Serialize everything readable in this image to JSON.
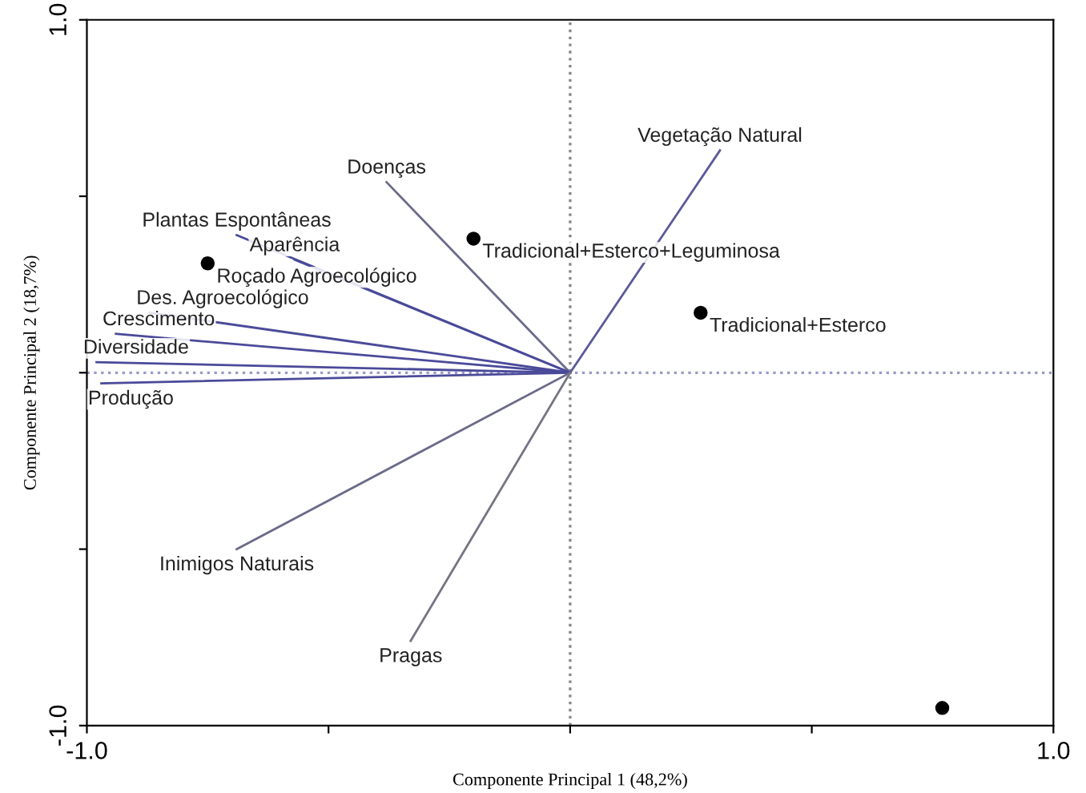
{
  "chart_data": {
    "type": "scatter",
    "xlabel": "Componente Principal 1 (48,2%)",
    "ylabel": "Componente Principal 2 (18,7%)",
    "xlim": [
      -1,
      1
    ],
    "ylim": [
      -1,
      1
    ],
    "xticks": [
      {
        "value": -1,
        "label": "-1.0"
      },
      {
        "value": -0.5,
        "label": null
      },
      {
        "value": 0,
        "label": null
      },
      {
        "value": 0.5,
        "label": null
      },
      {
        "value": 1,
        "label": "1.0"
      }
    ],
    "yticks": [
      {
        "value": -1,
        "label": "-1.0"
      },
      {
        "value": -0.5,
        "label": null
      },
      {
        "value": 0,
        "label": null
      },
      {
        "value": 0.5,
        "label": null
      },
      {
        "value": 1,
        "label": "1.0"
      }
    ],
    "grid": false,
    "legend": false,
    "series": [
      {
        "type": "line",
        "color": "#5a5a9a",
        "x": [
          0,
          0.31
        ],
        "values": [
          0,
          0.63
        ]
      },
      {
        "type": "line",
        "color": "#6a6a8a",
        "x": [
          0,
          -0.38
        ],
        "values": [
          0,
          0.54
        ]
      },
      {
        "type": "line",
        "color": "#4a4a9a",
        "x": [
          0,
          -0.69
        ],
        "values": [
          0,
          0.39
        ]
      },
      {
        "type": "line",
        "color": "#4a4a9a",
        "x": [
          0,
          -0.57
        ],
        "values": [
          0,
          0.32
        ]
      },
      {
        "type": "line",
        "color": "#4a4a9a",
        "x": [
          0,
          -0.87
        ],
        "values": [
          0,
          0.17
        ]
      },
      {
        "type": "line",
        "color": "#4a4a9a",
        "x": [
          0,
          -0.94
        ],
        "values": [
          0,
          0.11
        ]
      },
      {
        "type": "line",
        "color": "#4a4a9a",
        "x": [
          0,
          -0.98
        ],
        "values": [
          0,
          0.03
        ]
      },
      {
        "type": "line",
        "color": "#4a4a9a",
        "x": [
          0,
          -0.97
        ],
        "values": [
          0,
          -0.03
        ]
      },
      {
        "type": "line",
        "color": "#6a6a8a",
        "x": [
          0,
          -0.69
        ],
        "values": [
          0,
          -0.5
        ]
      },
      {
        "type": "line",
        "color": "#747484",
        "x": [
          0,
          -0.33
        ],
        "values": [
          0,
          -0.76
        ]
      },
      {
        "type": "scatter",
        "color": "#000000",
        "marker": "circle",
        "x": [
          -0.2,
          0.27,
          -0.75,
          0.77
        ],
        "values": [
          0.38,
          0.17,
          0.31,
          -0.95
        ]
      }
    ],
    "ref_lines": [
      {
        "axis": "x",
        "value": 0,
        "color": "#888888",
        "line_style": "dotted"
      },
      {
        "axis": "y",
        "value": 0,
        "color": "#9a9ac8",
        "line_style": "dotted"
      }
    ],
    "annotations": [
      {
        "text": "Vegetação Natural",
        "x": 0.31,
        "y": 0.63
      },
      {
        "text": "Doenças",
        "x": -0.38,
        "y": 0.54
      },
      {
        "text": "Plantas Espontâneas",
        "x": -0.69,
        "y": 0.39
      },
      {
        "text": "Aparência",
        "x": -0.57,
        "y": 0.32
      },
      {
        "text": "Des. Agroecológico",
        "x": -0.87,
        "y": 0.17
      },
      {
        "text": "Crescimento",
        "x": -0.94,
        "y": 0.11
      },
      {
        "text": "Diversidade",
        "x": -0.98,
        "y": 0.03
      },
      {
        "text": "Produção",
        "x": -0.97,
        "y": -0.03
      },
      {
        "text": "Inimigos Naturais",
        "x": -0.69,
        "y": -0.5
      },
      {
        "text": "Pragas",
        "x": -0.33,
        "y": -0.76
      },
      {
        "text": "Tradicional+Esterco+Leguminosa",
        "x": -0.2,
        "y": 0.38
      },
      {
        "text": "Tradicional+Esterco",
        "x": 0.27,
        "y": 0.17
      },
      {
        "text": "Roçado Agroecológico",
        "x": -0.75,
        "y": 0.31
      }
    ]
  }
}
